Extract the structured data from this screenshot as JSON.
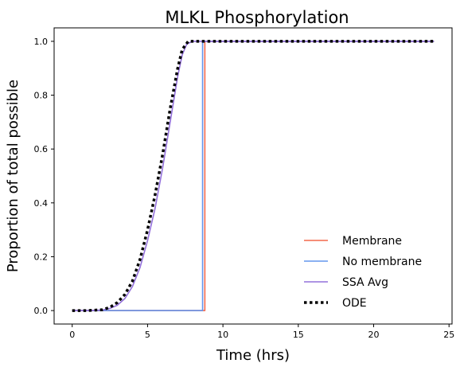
{
  "chart_data": {
    "type": "line",
    "title": "MLKL Phosphorylation",
    "xlabel": "Time (hrs)",
    "ylabel": "Proportion of total possible",
    "xlim": [
      -1.2,
      25.2
    ],
    "ylim": [
      -0.05,
      1.05
    ],
    "xticks": [
      0,
      5,
      10,
      15,
      20,
      25
    ],
    "xtick_labels": [
      "0",
      "5",
      "10",
      "15",
      "20",
      "25"
    ],
    "yticks": [
      0.0,
      0.2,
      0.4,
      0.6,
      0.8,
      1.0
    ],
    "ytick_labels": [
      "0.0",
      "0.2",
      "0.4",
      "0.6",
      "0.8",
      "1.0"
    ],
    "grid": false,
    "legend_position": "lower-right",
    "series": [
      {
        "name": "Membrane",
        "color": "#f4694b",
        "style": "solid",
        "x": [
          0,
          8.8,
          8.8,
          24
        ],
        "y": [
          0,
          0,
          1,
          1
        ]
      },
      {
        "name": "No membrane",
        "color": "#6495ed",
        "style": "solid",
        "x": [
          0,
          8.65,
          8.65,
          24
        ],
        "y": [
          0,
          0,
          1,
          1
        ]
      },
      {
        "name": "SSA Avg",
        "color": "#9370db",
        "style": "solid",
        "x": [
          0,
          1,
          2,
          2.5,
          3,
          3.5,
          4,
          4.5,
          5,
          5.5,
          6,
          6.5,
          7,
          7.3,
          7.6,
          8,
          9,
          12,
          16,
          20,
          24
        ],
        "y": [
          0,
          0,
          0.002,
          0.008,
          0.02,
          0.045,
          0.09,
          0.16,
          0.26,
          0.38,
          0.53,
          0.7,
          0.87,
          0.95,
          0.99,
          1.0,
          1.0,
          1.0,
          1.0,
          1.0,
          1.0
        ]
      },
      {
        "name": "ODE",
        "color": "#000000",
        "style": "dotted",
        "x": [
          0,
          1,
          2,
          2.5,
          3,
          3.5,
          4,
          4.5,
          5,
          5.5,
          6,
          6.5,
          7,
          7.3,
          7.7,
          8,
          9,
          12,
          16,
          20,
          24
        ],
        "y": [
          0,
          0,
          0.003,
          0.012,
          0.03,
          0.06,
          0.11,
          0.19,
          0.3,
          0.43,
          0.58,
          0.75,
          0.9,
          0.97,
          1.0,
          1.0,
          1.0,
          1.0,
          1.0,
          1.0,
          1.0
        ]
      }
    ]
  }
}
